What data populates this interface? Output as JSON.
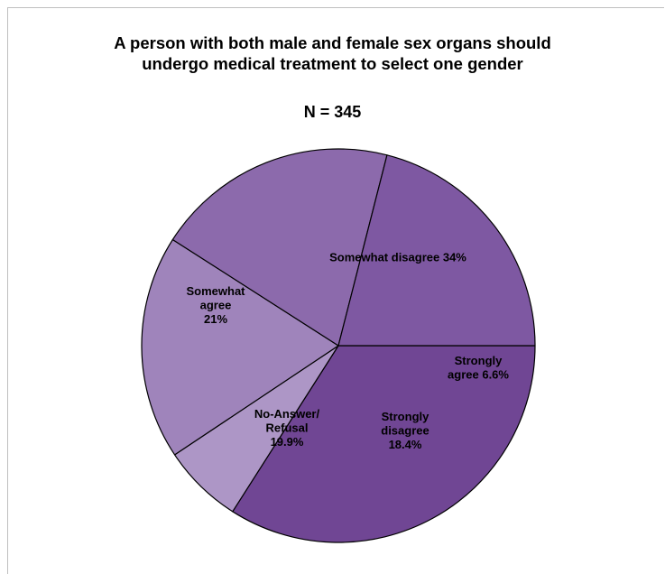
{
  "chart_data": {
    "type": "pie",
    "title": [
      "A person with both male and female sex organs should",
      "undergo medical treatment to select one gender"
    ],
    "subtitle": "N = 345",
    "slices": [
      {
        "name": "Somewhat disagree",
        "value": 34,
        "color": "#704694",
        "label": [
          "Somewhat disagree 34%"
        ]
      },
      {
        "name": "Strongly agree",
        "value": 6.6,
        "color": "#ad96c6",
        "label": [
          "Strongly",
          "agree 6.6%"
        ]
      },
      {
        "name": "Strongly disagree",
        "value": 18.4,
        "color": "#9f84bb",
        "label": [
          "Strongly",
          "disagree",
          "18.4%"
        ]
      },
      {
        "name": "No-Answer/Refusal",
        "value": 19.9,
        "color": "#8c6aac",
        "label": [
          "No-Answer/",
          "Refusal",
          "19.9%"
        ]
      },
      {
        "name": "Somewhat agree",
        "value": 21,
        "color": "#7e58a2",
        "label": [
          "Somewhat",
          "agree",
          "21%"
        ]
      }
    ],
    "start_angle_deg": 0,
    "direction": "clockwise",
    "legend": "none"
  }
}
